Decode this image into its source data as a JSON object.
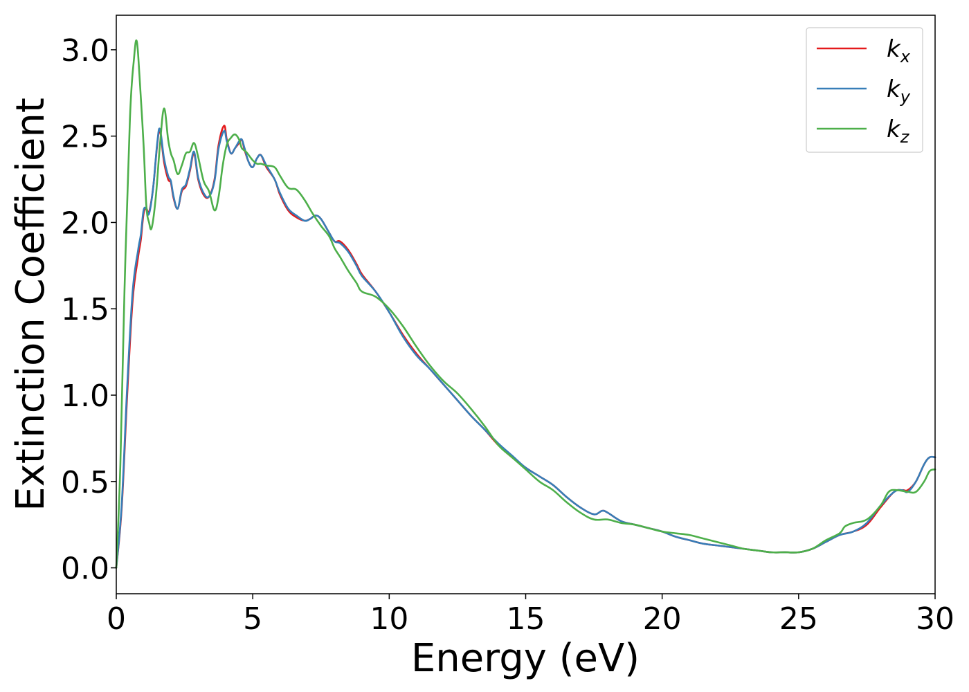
{
  "chart_data": {
    "type": "line",
    "title": "",
    "xlabel": "Energy (eV)",
    "ylabel": "Extinction Coefficient",
    "xlim": [
      0,
      30
    ],
    "ylim": [
      -0.15,
      3.2
    ],
    "xticks": [
      0,
      5,
      10,
      15,
      20,
      25,
      30
    ],
    "xtick_labels": [
      "0",
      "5",
      "10",
      "15",
      "20",
      "25",
      "30"
    ],
    "yticks": [
      0.0,
      0.5,
      1.0,
      1.5,
      2.0,
      2.5,
      3.0
    ],
    "ytick_labels": [
      "0.0",
      "0.5",
      "1.0",
      "1.5",
      "2.0",
      "2.5",
      "3.0"
    ],
    "grid": false,
    "legend_position": "top-right",
    "series": [
      {
        "name": "k_x",
        "label_main": "k",
        "label_sub": "x",
        "color": "#e41a1c",
        "x": [
          0,
          0.2,
          0.4,
          0.6,
          0.8,
          0.9,
          1.0,
          1.1,
          1.2,
          1.35,
          1.5,
          1.6,
          1.75,
          1.9,
          2.0,
          2.1,
          2.25,
          2.4,
          2.55,
          2.7,
          2.85,
          3.0,
          3.2,
          3.4,
          3.6,
          3.75,
          3.95,
          4.05,
          4.2,
          4.35,
          4.5,
          4.6,
          4.7,
          4.85,
          5.0,
          5.15,
          5.3,
          5.5,
          5.8,
          6.0,
          6.3,
          6.6,
          6.9,
          7.1,
          7.3,
          7.5,
          7.8,
          8.0,
          8.2,
          8.5,
          8.8,
          9.0,
          9.5,
          10.0,
          10.5,
          11.0,
          11.5,
          12.0,
          12.5,
          13.0,
          13.5,
          14.0,
          14.5,
          15.0,
          15.5,
          16.0,
          16.5,
          17.0,
          17.5,
          17.8,
          18.0,
          18.5,
          19.0,
          19.5,
          20.0,
          20.5,
          21.0,
          21.5,
          22.0,
          22.5,
          23.0,
          23.5,
          24.0,
          24.5,
          25.0,
          25.5,
          26.0,
          26.5,
          27.0,
          27.5,
          28.0,
          28.5,
          28.8,
          29.0,
          29.3,
          29.6,
          29.8,
          30.0
        ],
        "y": [
          0.0,
          0.35,
          1.0,
          1.55,
          1.8,
          1.9,
          2.05,
          2.08,
          2.06,
          2.2,
          2.45,
          2.53,
          2.35,
          2.25,
          2.23,
          2.14,
          2.08,
          2.18,
          2.21,
          2.3,
          2.4,
          2.25,
          2.16,
          2.15,
          2.25,
          2.45,
          2.56,
          2.48,
          2.4,
          2.43,
          2.46,
          2.48,
          2.42,
          2.35,
          2.32,
          2.37,
          2.39,
          2.32,
          2.25,
          2.16,
          2.07,
          2.03,
          2.01,
          2.02,
          2.04,
          2.02,
          1.94,
          1.89,
          1.89,
          1.84,
          1.76,
          1.7,
          1.6,
          1.48,
          1.35,
          1.24,
          1.15,
          1.06,
          0.97,
          0.88,
          0.8,
          0.71,
          0.64,
          0.58,
          0.53,
          0.48,
          0.41,
          0.35,
          0.31,
          0.33,
          0.32,
          0.27,
          0.25,
          0.23,
          0.21,
          0.18,
          0.16,
          0.14,
          0.13,
          0.12,
          0.11,
          0.1,
          0.09,
          0.09,
          0.09,
          0.11,
          0.15,
          0.19,
          0.21,
          0.25,
          0.35,
          0.44,
          0.45,
          0.45,
          0.5,
          0.6,
          0.64,
          0.64
        ]
      },
      {
        "name": "k_y",
        "label_main": "k",
        "label_sub": "y",
        "color": "#377eb8",
        "x": [
          0,
          0.2,
          0.4,
          0.6,
          0.8,
          0.9,
          1.0,
          1.1,
          1.2,
          1.35,
          1.5,
          1.6,
          1.75,
          1.9,
          2.0,
          2.1,
          2.25,
          2.4,
          2.55,
          2.7,
          2.85,
          3.0,
          3.2,
          3.4,
          3.6,
          3.75,
          3.95,
          4.05,
          4.2,
          4.35,
          4.5,
          4.6,
          4.7,
          4.85,
          5.0,
          5.15,
          5.3,
          5.5,
          5.8,
          6.0,
          6.3,
          6.6,
          6.9,
          7.1,
          7.3,
          7.5,
          7.8,
          8.0,
          8.2,
          8.5,
          8.8,
          9.0,
          9.5,
          10.0,
          10.5,
          11.0,
          11.5,
          12.0,
          12.5,
          13.0,
          13.5,
          14.0,
          14.5,
          15.0,
          15.5,
          16.0,
          16.5,
          17.0,
          17.5,
          17.8,
          18.0,
          18.5,
          19.0,
          19.5,
          20.0,
          20.5,
          21.0,
          21.5,
          22.0,
          22.5,
          23.0,
          23.5,
          24.0,
          24.5,
          25.0,
          25.5,
          26.0,
          26.5,
          27.0,
          27.5,
          28.0,
          28.5,
          28.8,
          29.0,
          29.3,
          29.6,
          29.8,
          30.0
        ],
        "y": [
          0.0,
          0.37,
          1.05,
          1.6,
          1.84,
          1.93,
          2.07,
          2.08,
          2.05,
          2.2,
          2.46,
          2.54,
          2.37,
          2.27,
          2.24,
          2.15,
          2.08,
          2.19,
          2.22,
          2.31,
          2.41,
          2.26,
          2.17,
          2.15,
          2.24,
          2.43,
          2.53,
          2.47,
          2.4,
          2.43,
          2.47,
          2.48,
          2.43,
          2.35,
          2.32,
          2.37,
          2.39,
          2.33,
          2.25,
          2.17,
          2.08,
          2.04,
          2.01,
          2.02,
          2.04,
          2.02,
          1.94,
          1.89,
          1.88,
          1.83,
          1.75,
          1.69,
          1.6,
          1.48,
          1.34,
          1.23,
          1.15,
          1.06,
          0.97,
          0.88,
          0.8,
          0.72,
          0.65,
          0.58,
          0.53,
          0.48,
          0.41,
          0.35,
          0.31,
          0.33,
          0.32,
          0.27,
          0.25,
          0.23,
          0.21,
          0.18,
          0.16,
          0.14,
          0.13,
          0.12,
          0.11,
          0.1,
          0.09,
          0.09,
          0.09,
          0.11,
          0.15,
          0.19,
          0.21,
          0.26,
          0.36,
          0.44,
          0.45,
          0.44,
          0.5,
          0.6,
          0.64,
          0.64
        ]
      },
      {
        "name": "k_z",
        "label_main": "k",
        "label_sub": "z",
        "color": "#4daf4a",
        "x": [
          0,
          0.15,
          0.3,
          0.5,
          0.65,
          0.75,
          0.85,
          1.0,
          1.1,
          1.2,
          1.3,
          1.45,
          1.6,
          1.75,
          1.9,
          2.0,
          2.1,
          2.25,
          2.4,
          2.55,
          2.7,
          2.85,
          3.0,
          3.2,
          3.4,
          3.6,
          3.75,
          3.9,
          4.05,
          4.2,
          4.35,
          4.5,
          4.6,
          4.75,
          4.9,
          5.0,
          5.15,
          5.3,
          5.5,
          5.8,
          6.0,
          6.3,
          6.6,
          6.9,
          7.2,
          7.5,
          7.8,
          8.0,
          8.2,
          8.5,
          8.8,
          9.0,
          9.5,
          10.0,
          10.5,
          11.0,
          11.5,
          12.0,
          12.5,
          13.0,
          13.5,
          14.0,
          14.5,
          15.0,
          15.5,
          16.0,
          16.5,
          17.0,
          17.5,
          18.0,
          18.5,
          19.0,
          19.5,
          20.0,
          20.5,
          21.0,
          21.5,
          22.0,
          22.5,
          23.0,
          23.5,
          24.0,
          24.5,
          25.0,
          25.5,
          26.0,
          26.5,
          26.7,
          27.0,
          27.5,
          28.0,
          28.3,
          28.6,
          29.0,
          29.3,
          29.6,
          29.8,
          30.0
        ],
        "y": [
          0.0,
          0.6,
          1.6,
          2.6,
          2.95,
          3.05,
          2.85,
          2.45,
          2.1,
          2.0,
          1.97,
          2.15,
          2.45,
          2.66,
          2.48,
          2.4,
          2.36,
          2.28,
          2.33,
          2.4,
          2.41,
          2.46,
          2.38,
          2.24,
          2.18,
          2.07,
          2.15,
          2.33,
          2.45,
          2.49,
          2.51,
          2.48,
          2.43,
          2.41,
          2.38,
          2.36,
          2.34,
          2.34,
          2.33,
          2.32,
          2.27,
          2.2,
          2.19,
          2.13,
          2.05,
          1.98,
          1.92,
          1.85,
          1.8,
          1.72,
          1.65,
          1.6,
          1.57,
          1.5,
          1.4,
          1.28,
          1.17,
          1.08,
          1.01,
          0.92,
          0.82,
          0.71,
          0.64,
          0.57,
          0.5,
          0.45,
          0.38,
          0.32,
          0.28,
          0.28,
          0.26,
          0.25,
          0.23,
          0.21,
          0.2,
          0.19,
          0.17,
          0.15,
          0.13,
          0.11,
          0.1,
          0.09,
          0.09,
          0.09,
          0.11,
          0.16,
          0.2,
          0.24,
          0.26,
          0.28,
          0.36,
          0.44,
          0.45,
          0.44,
          0.44,
          0.5,
          0.56,
          0.57
        ]
      }
    ]
  }
}
